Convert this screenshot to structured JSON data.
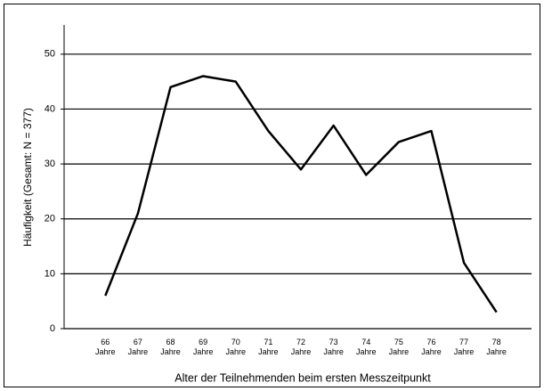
{
  "chart_data": {
    "type": "line",
    "y_label": "Häufigkeit (Gesamt: N = 377)",
    "x_label": "Alter der Teilnehmenden beim ersten Messzeitpunkt",
    "categories": [
      "66\nJahre",
      "67\nJahre",
      "68\nJahre",
      "69\nJahre",
      "70\nJahre",
      "71\nJahre",
      "72\nJahre",
      "73\nJahre",
      "74\nJahre",
      "75\nJahre",
      "76\nJahre",
      "77\nJahre",
      "78\nJahre"
    ],
    "values": [
      6,
      21,
      44,
      46,
      45,
      36,
      29,
      37,
      28,
      34,
      36,
      12,
      3
    ],
    "color": "#000000",
    "ylim": [
      0,
      55
    ],
    "yticks": [
      0,
      10,
      20,
      30,
      40,
      50
    ],
    "grid": true
  }
}
